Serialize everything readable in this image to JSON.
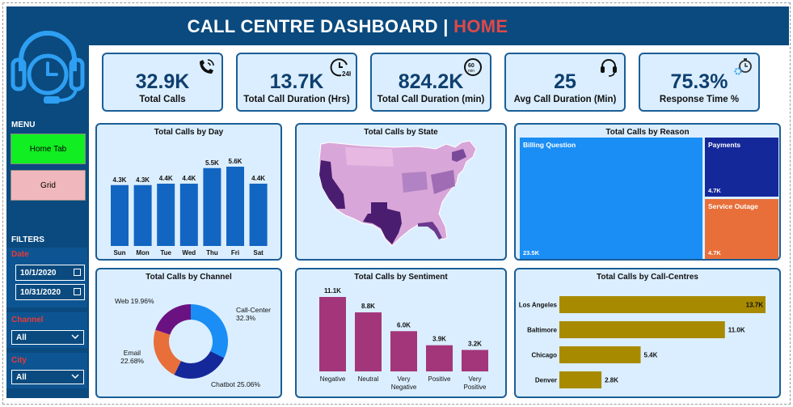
{
  "header": {
    "title": "CALL CENTRE DASHBOARD",
    "separator": "|",
    "page": "HOME"
  },
  "sidebar": {
    "menu_label": "MENU",
    "nav": [
      {
        "label": "Home Tab",
        "color": "#11ee22"
      },
      {
        "label": "Grid",
        "color": "#f0b8bc"
      }
    ],
    "filters_label": "FILTERS",
    "date_label": "Date",
    "date_from": "10/1/2020",
    "date_to": "10/31/2020",
    "channel_label": "Channel",
    "channel_value": "All",
    "city_label": "City",
    "city_value": "All"
  },
  "kpis": [
    {
      "value": "32.9K",
      "label": "Total Calls",
      "icon": "phone-ringing-icon"
    },
    {
      "value": "13.7K",
      "label": "Total Call Duration (Hrs)",
      "icon": "clock-24h-icon"
    },
    {
      "value": "824.2K",
      "label": "Total Call Duration (min)",
      "icon": "clock-60min-icon"
    },
    {
      "value": "25",
      "label": "Avg Call Duration (Min)",
      "icon": "headset-icon"
    },
    {
      "value": "75.3%",
      "label": "Response Time %",
      "icon": "stopwatch-gear-icon"
    }
  ],
  "chart_data": [
    {
      "type": "bar",
      "title": "Total Calls by Day",
      "categories": [
        "Sun",
        "Mon",
        "Tue",
        "Wed",
        "Thu",
        "Fri",
        "Sat"
      ],
      "values": [
        4.3,
        4.3,
        4.4,
        4.4,
        5.5,
        5.6,
        4.4
      ],
      "labels": [
        "4.3K",
        "4.3K",
        "4.4K",
        "4.4K",
        "5.5K",
        "5.6K",
        "4.4K"
      ],
      "color": "#1266c2"
    },
    {
      "type": "map",
      "title": "Total Calls by State",
      "color": "#c8a0d0"
    },
    {
      "type": "treemap",
      "title": "Total Calls by Reason",
      "items": [
        {
          "name": "Billing Question",
          "value": 23.5,
          "label": "23.5K",
          "color": "#1a8ef5"
        },
        {
          "name": "Payments",
          "value": 4.7,
          "label": "4.7K",
          "color": "#15289a"
        },
        {
          "name": "Service Outage",
          "value": 4.7,
          "label": "4.7K",
          "color": "#e86f3a"
        }
      ]
    },
    {
      "type": "pie",
      "title": "Total Calls by Channel",
      "slices": [
        {
          "name": "Call-Center",
          "value": 32.3,
          "label": "32.3%",
          "color": "#1a8ef5"
        },
        {
          "name": "Chatbot",
          "value": 25.06,
          "label": "25.06%",
          "color": "#15289a"
        },
        {
          "name": "Email",
          "value": 22.68,
          "label": "22.68%",
          "color": "#e86f3a"
        },
        {
          "name": "Web",
          "value": 19.96,
          "label": "19.96%",
          "color": "#6b1283"
        }
      ]
    },
    {
      "type": "bar",
      "title": "Total Calls by Sentiment",
      "categories": [
        "Negative",
        "Neutral",
        "Very Negative",
        "Positive",
        "Very Positive"
      ],
      "values": [
        11.1,
        8.8,
        6.0,
        3.9,
        3.2
      ],
      "labels": [
        "11.1K",
        "8.8K",
        "6.0K",
        "3.9K",
        "3.2K"
      ],
      "color": "#a3367a"
    },
    {
      "type": "bar",
      "orientation": "horizontal",
      "title": "Total Calls by Call-Centres",
      "categories": [
        "Los Angeles",
        "Baltimore",
        "Chicago",
        "Denver"
      ],
      "values": [
        13.7,
        11.0,
        5.4,
        2.8
      ],
      "labels": [
        "13.7K",
        "11.0K",
        "5.4K",
        "2.8K"
      ],
      "color": "#a88a00"
    }
  ]
}
